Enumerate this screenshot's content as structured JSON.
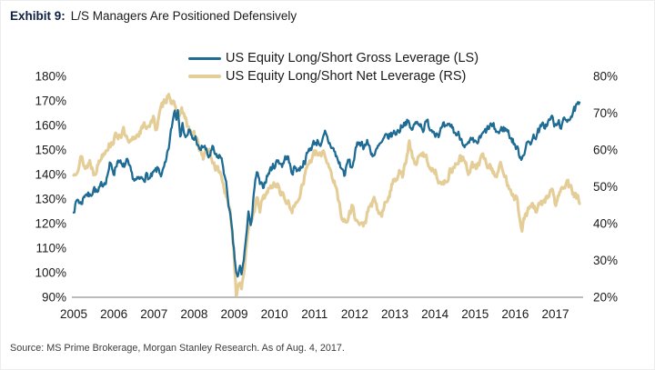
{
  "header": {
    "label": "Exhibit 9:",
    "title": "L/S Managers Are Positioned Defensively"
  },
  "footer": {
    "source": "Source: MS Prime Brokerage, Morgan Stanley Research. As of Aug. 4, 2017."
  },
  "colors": {
    "gross_line": "#1e6b94",
    "net_line": "#e4cd97",
    "axis_text": "#1a1a1a",
    "axis_line": "#777777",
    "exhibit_label": "#0d2240"
  },
  "chart_data": {
    "type": "line",
    "title": "L/S Managers Are Positioned Defensively",
    "x_range": [
      2005.0,
      2017.6
    ],
    "x_ticks": [
      "2005",
      "2006",
      "2007",
      "2008",
      "2009",
      "2010",
      "2011",
      "2012",
      "2013",
      "2014",
      "2015",
      "2016",
      "2017"
    ],
    "grid": false,
    "legend_position": "top-center",
    "left_axis": {
      "min": 90,
      "max": 180,
      "tick_step": 10,
      "unit": "%",
      "tick_labels": [
        "180%",
        "170%",
        "160%",
        "150%",
        "140%",
        "130%",
        "120%",
        "110%",
        "100%",
        "90%"
      ]
    },
    "right_axis": {
      "min": 20,
      "max": 80,
      "tick_step": 10,
      "unit": "%",
      "tick_labels": [
        "80%",
        "70%",
        "60%",
        "50%",
        "40%",
        "30%",
        "20%"
      ]
    },
    "series": [
      {
        "name": "US Equity Long/Short Gross Leverage (LS)",
        "axis": "left",
        "color": "#1e6b94",
        "line_width": 2.3,
        "keypoints": [
          [
            2005.0,
            126
          ],
          [
            2005.1,
            130
          ],
          [
            2005.18,
            128
          ],
          [
            2005.3,
            133
          ],
          [
            2005.4,
            131
          ],
          [
            2005.5,
            135
          ],
          [
            2005.6,
            132
          ],
          [
            2005.72,
            136
          ],
          [
            2005.82,
            139
          ],
          [
            2005.9,
            144
          ],
          [
            2006.0,
            141
          ],
          [
            2006.12,
            147
          ],
          [
            2006.22,
            142
          ],
          [
            2006.32,
            145
          ],
          [
            2006.45,
            139
          ],
          [
            2006.58,
            137
          ],
          [
            2006.7,
            138
          ],
          [
            2006.8,
            140
          ],
          [
            2006.9,
            138
          ],
          [
            2007.0,
            140
          ],
          [
            2007.1,
            142
          ],
          [
            2007.2,
            140
          ],
          [
            2007.3,
            144
          ],
          [
            2007.38,
            152
          ],
          [
            2007.46,
            161
          ],
          [
            2007.52,
            167
          ],
          [
            2007.56,
            163
          ],
          [
            2007.6,
            168
          ],
          [
            2007.65,
            158
          ],
          [
            2007.72,
            160
          ],
          [
            2007.8,
            155
          ],
          [
            2007.87,
            158
          ],
          [
            2007.95,
            154
          ],
          [
            2008.05,
            155
          ],
          [
            2008.13,
            149
          ],
          [
            2008.24,
            152
          ],
          [
            2008.35,
            147
          ],
          [
            2008.46,
            150
          ],
          [
            2008.57,
            146
          ],
          [
            2008.64,
            148
          ],
          [
            2008.73,
            143
          ],
          [
            2008.84,
            131
          ],
          [
            2008.92,
            120
          ],
          [
            2008.98,
            110
          ],
          [
            2009.04,
            101
          ],
          [
            2009.09,
            97
          ],
          [
            2009.14,
            102
          ],
          [
            2009.19,
            99
          ],
          [
            2009.28,
            112
          ],
          [
            2009.36,
            124
          ],
          [
            2009.42,
            120
          ],
          [
            2009.5,
            133
          ],
          [
            2009.56,
            141
          ],
          [
            2009.63,
            136
          ],
          [
            2009.7,
            134
          ],
          [
            2009.8,
            139
          ],
          [
            2009.9,
            142
          ],
          [
            2010.0,
            144
          ],
          [
            2010.1,
            146
          ],
          [
            2010.2,
            144
          ],
          [
            2010.32,
            148
          ],
          [
            2010.42,
            141
          ],
          [
            2010.52,
            143
          ],
          [
            2010.62,
            142
          ],
          [
            2010.72,
            145
          ],
          [
            2010.82,
            148
          ],
          [
            2010.9,
            151
          ],
          [
            2011.0,
            153
          ],
          [
            2011.1,
            154
          ],
          [
            2011.18,
            152
          ],
          [
            2011.26,
            156
          ],
          [
            2011.35,
            153
          ],
          [
            2011.45,
            151
          ],
          [
            2011.6,
            145
          ],
          [
            2011.75,
            140
          ],
          [
            2011.85,
            146
          ],
          [
            2011.92,
            142
          ],
          [
            2012.0,
            148
          ],
          [
            2012.12,
            154
          ],
          [
            2012.22,
            152
          ],
          [
            2012.32,
            153
          ],
          [
            2012.42,
            149
          ],
          [
            2012.5,
            148
          ],
          [
            2012.6,
            151
          ],
          [
            2012.7,
            153
          ],
          [
            2012.8,
            155
          ],
          [
            2012.9,
            156
          ],
          [
            2013.0,
            157
          ],
          [
            2013.1,
            158
          ],
          [
            2013.2,
            161
          ],
          [
            2013.3,
            162
          ],
          [
            2013.4,
            158
          ],
          [
            2013.5,
            160
          ],
          [
            2013.6,
            162
          ],
          [
            2013.7,
            159
          ],
          [
            2013.8,
            161
          ],
          [
            2013.9,
            159
          ],
          [
            2014.0,
            158
          ],
          [
            2014.1,
            157
          ],
          [
            2014.2,
            159
          ],
          [
            2014.3,
            158
          ],
          [
            2014.4,
            160
          ],
          [
            2014.5,
            157
          ],
          [
            2014.6,
            156
          ],
          [
            2014.7,
            154
          ],
          [
            2014.8,
            151
          ],
          [
            2014.9,
            153
          ],
          [
            2015.0,
            152
          ],
          [
            2015.1,
            154
          ],
          [
            2015.2,
            156
          ],
          [
            2015.3,
            158
          ],
          [
            2015.4,
            160
          ],
          [
            2015.5,
            158
          ],
          [
            2015.6,
            157
          ],
          [
            2015.7,
            159
          ],
          [
            2015.8,
            158
          ],
          [
            2015.9,
            155
          ],
          [
            2016.0,
            152
          ],
          [
            2016.08,
            149
          ],
          [
            2016.15,
            147
          ],
          [
            2016.25,
            151
          ],
          [
            2016.35,
            153
          ],
          [
            2016.45,
            155
          ],
          [
            2016.55,
            157
          ],
          [
            2016.65,
            159
          ],
          [
            2016.75,
            160
          ],
          [
            2016.85,
            162
          ],
          [
            2016.92,
            163
          ],
          [
            2017.0,
            159
          ],
          [
            2017.08,
            161
          ],
          [
            2017.16,
            160
          ],
          [
            2017.25,
            162
          ],
          [
            2017.35,
            164
          ],
          [
            2017.45,
            165
          ],
          [
            2017.52,
            167
          ],
          [
            2017.6,
            168
          ]
        ]
      },
      {
        "name": "US Equity Long/Short Net Leverage (RS)",
        "axis": "right",
        "color": "#e4cd97",
        "line_width": 3.1,
        "keypoints": [
          [
            2005.0,
            53
          ],
          [
            2005.1,
            56
          ],
          [
            2005.18,
            58
          ],
          [
            2005.3,
            55
          ],
          [
            2005.4,
            57
          ],
          [
            2005.5,
            54
          ],
          [
            2005.6,
            56
          ],
          [
            2005.72,
            59
          ],
          [
            2005.82,
            61
          ],
          [
            2005.93,
            62
          ],
          [
            2006.0,
            63
          ],
          [
            2006.1,
            64
          ],
          [
            2006.24,
            65
          ],
          [
            2006.38,
            61
          ],
          [
            2006.5,
            63
          ],
          [
            2006.62,
            65
          ],
          [
            2006.74,
            66
          ],
          [
            2006.85,
            67
          ],
          [
            2006.99,
            68
          ],
          [
            2007.06,
            66
          ],
          [
            2007.15,
            70
          ],
          [
            2007.22,
            72
          ],
          [
            2007.3,
            74
          ],
          [
            2007.37,
            76
          ],
          [
            2007.45,
            73
          ],
          [
            2007.52,
            71
          ],
          [
            2007.6,
            69
          ],
          [
            2007.69,
            71
          ],
          [
            2007.78,
            68
          ],
          [
            2007.89,
            65
          ],
          [
            2008.0,
            64
          ],
          [
            2008.12,
            61
          ],
          [
            2008.24,
            58
          ],
          [
            2008.33,
            60
          ],
          [
            2008.46,
            57
          ],
          [
            2008.57,
            55
          ],
          [
            2008.69,
            53
          ],
          [
            2008.8,
            47
          ],
          [
            2008.91,
            42
          ],
          [
            2008.98,
            34
          ],
          [
            2009.05,
            21
          ],
          [
            2009.12,
            25
          ],
          [
            2009.18,
            23
          ],
          [
            2009.28,
            31
          ],
          [
            2009.38,
            39
          ],
          [
            2009.48,
            44
          ],
          [
            2009.56,
            46
          ],
          [
            2009.64,
            44
          ],
          [
            2009.74,
            47
          ],
          [
            2009.84,
            49
          ],
          [
            2009.95,
            50
          ],
          [
            2010.05,
            51
          ],
          [
            2010.15,
            49
          ],
          [
            2010.25,
            47
          ],
          [
            2010.35,
            45
          ],
          [
            2010.45,
            44
          ],
          [
            2010.55,
            45
          ],
          [
            2010.62,
            48
          ],
          [
            2010.72,
            52
          ],
          [
            2010.83,
            56
          ],
          [
            2010.95,
            58
          ],
          [
            2011.05,
            59
          ],
          [
            2011.13,
            58
          ],
          [
            2011.22,
            60
          ],
          [
            2011.32,
            57
          ],
          [
            2011.42,
            54
          ],
          [
            2011.52,
            50
          ],
          [
            2011.62,
            45
          ],
          [
            2011.72,
            41
          ],
          [
            2011.8,
            40
          ],
          [
            2011.88,
            43
          ],
          [
            2011.96,
            45
          ],
          [
            2012.04,
            41
          ],
          [
            2012.12,
            40
          ],
          [
            2012.2,
            39
          ],
          [
            2012.3,
            42
          ],
          [
            2012.4,
            45
          ],
          [
            2012.48,
            46
          ],
          [
            2012.56,
            44
          ],
          [
            2012.66,
            42
          ],
          [
            2012.76,
            45
          ],
          [
            2012.86,
            48
          ],
          [
            2012.95,
            51
          ],
          [
            2013.05,
            53
          ],
          [
            2013.12,
            55
          ],
          [
            2013.2,
            53
          ],
          [
            2013.3,
            58
          ],
          [
            2013.36,
            62
          ],
          [
            2013.45,
            57
          ],
          [
            2013.55,
            57
          ],
          [
            2013.65,
            58
          ],
          [
            2013.72,
            59
          ],
          [
            2013.82,
            57
          ],
          [
            2013.92,
            55
          ],
          [
            2014.02,
            54
          ],
          [
            2014.12,
            52
          ],
          [
            2014.22,
            50
          ],
          [
            2014.32,
            53
          ],
          [
            2014.42,
            55
          ],
          [
            2014.52,
            56
          ],
          [
            2014.62,
            58
          ],
          [
            2014.72,
            57
          ],
          [
            2014.82,
            54
          ],
          [
            2014.92,
            56
          ],
          [
            2015.02,
            55
          ],
          [
            2015.12,
            57
          ],
          [
            2015.22,
            58
          ],
          [
            2015.32,
            56
          ],
          [
            2015.42,
            55
          ],
          [
            2015.52,
            53
          ],
          [
            2015.62,
            56
          ],
          [
            2015.72,
            53
          ],
          [
            2015.82,
            51
          ],
          [
            2015.92,
            49
          ],
          [
            2016.02,
            47
          ],
          [
            2016.1,
            43
          ],
          [
            2016.16,
            39
          ],
          [
            2016.25,
            42
          ],
          [
            2016.33,
            44
          ],
          [
            2016.42,
            45
          ],
          [
            2016.52,
            43
          ],
          [
            2016.62,
            45
          ],
          [
            2016.72,
            46
          ],
          [
            2016.82,
            48
          ],
          [
            2016.92,
            49
          ],
          [
            2017.0,
            45
          ],
          [
            2017.1,
            48
          ],
          [
            2017.2,
            50
          ],
          [
            2017.28,
            51
          ],
          [
            2017.38,
            49
          ],
          [
            2017.48,
            48
          ],
          [
            2017.6,
            46
          ]
        ]
      }
    ]
  }
}
